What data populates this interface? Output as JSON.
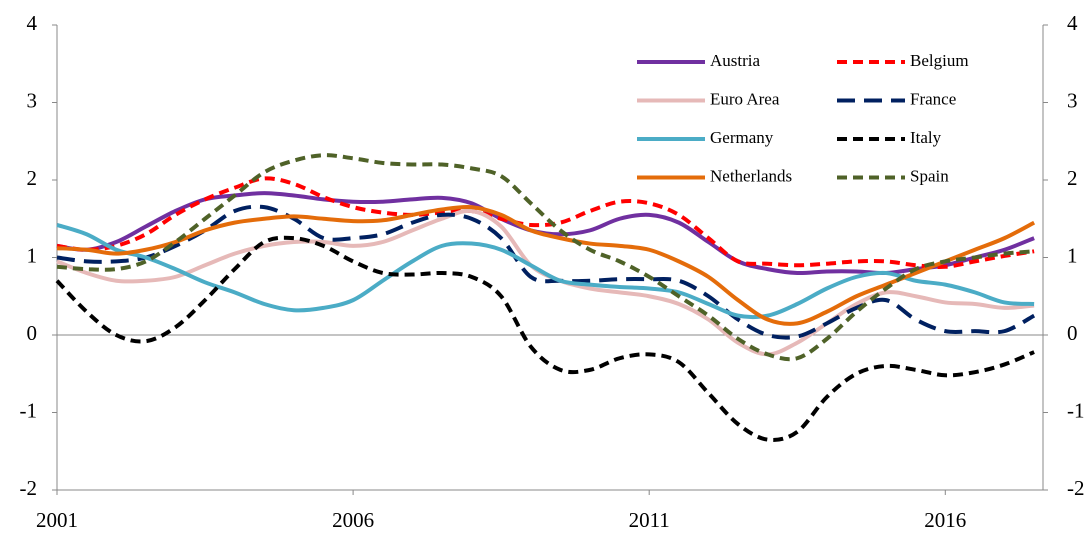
{
  "chart_data": {
    "type": "line",
    "x": [
      2001,
      2001.5,
      2002,
      2002.5,
      2003,
      2003.5,
      2004,
      2004.5,
      2005,
      2005.5,
      2006,
      2006.5,
      2007,
      2007.5,
      2008,
      2008.5,
      2009,
      2009.5,
      2010,
      2010.5,
      2011,
      2011.5,
      2012,
      2012.5,
      2013,
      2013.5,
      2014,
      2014.5,
      2015,
      2015.5,
      2016,
      2016.5,
      2017,
      2017.5
    ],
    "xlim": [
      2001,
      2017.65
    ],
    "xticks": [
      2001,
      2006,
      2011,
      2016
    ],
    "ylim": [
      -2,
      4
    ],
    "yticks": [
      -2,
      -1,
      0,
      1,
      2,
      3,
      4
    ],
    "y2lim": [
      -2,
      4
    ],
    "y2ticks": [
      -2,
      -1,
      0,
      1,
      2,
      3,
      4
    ],
    "series": [
      {
        "name": "Austria",
        "color": "#7030a0",
        "line_style": "solid",
        "values": [
          1.15,
          1.1,
          1.2,
          1.4,
          1.6,
          1.75,
          1.8,
          1.83,
          1.8,
          1.75,
          1.72,
          1.72,
          1.75,
          1.77,
          1.7,
          1.5,
          1.35,
          1.3,
          1.35,
          1.5,
          1.55,
          1.45,
          1.2,
          0.95,
          0.85,
          0.8,
          0.82,
          0.82,
          0.8,
          0.85,
          0.9,
          1.0,
          1.1,
          1.25
        ]
      },
      {
        "name": "Belgium",
        "color": "#ff0000",
        "line_style": "dashed",
        "values": [
          1.15,
          1.1,
          1.15,
          1.3,
          1.55,
          1.75,
          1.9,
          2.02,
          1.95,
          1.78,
          1.65,
          1.58,
          1.55,
          1.58,
          1.6,
          1.5,
          1.42,
          1.45,
          1.6,
          1.72,
          1.7,
          1.55,
          1.25,
          0.95,
          0.92,
          0.9,
          0.92,
          0.95,
          0.95,
          0.9,
          0.88,
          0.95,
          1.02,
          1.08
        ]
      },
      {
        "name": "Euro Area",
        "color": "#e6b9b8",
        "line_style": "solid",
        "values": [
          0.95,
          0.8,
          0.7,
          0.7,
          0.75,
          0.9,
          1.05,
          1.15,
          1.2,
          1.2,
          1.15,
          1.2,
          1.35,
          1.5,
          1.6,
          1.4,
          0.9,
          0.7,
          0.6,
          0.55,
          0.5,
          0.4,
          0.2,
          -0.1,
          -0.25,
          -0.1,
          0.15,
          0.4,
          0.55,
          0.5,
          0.42,
          0.4,
          0.35,
          0.38
        ]
      },
      {
        "name": "France",
        "color": "#002060",
        "line_style": "long-dashed",
        "values": [
          1.0,
          0.95,
          0.95,
          1.0,
          1.15,
          1.35,
          1.6,
          1.65,
          1.5,
          1.25,
          1.25,
          1.3,
          1.45,
          1.55,
          1.5,
          1.25,
          0.75,
          0.7,
          0.7,
          0.72,
          0.72,
          0.7,
          0.5,
          0.2,
          0.0,
          -0.02,
          0.15,
          0.35,
          0.45,
          0.2,
          0.05,
          0.05,
          0.05,
          0.25
        ]
      },
      {
        "name": "Germany",
        "color": "#4bacc6",
        "line_style": "solid",
        "values": [
          1.42,
          1.3,
          1.1,
          1.0,
          0.85,
          0.68,
          0.55,
          0.4,
          0.32,
          0.35,
          0.45,
          0.7,
          0.95,
          1.15,
          1.18,
          1.1,
          0.9,
          0.7,
          0.65,
          0.62,
          0.6,
          0.55,
          0.4,
          0.25,
          0.25,
          0.4,
          0.6,
          0.75,
          0.8,
          0.7,
          0.65,
          0.55,
          0.42,
          0.4
        ]
      },
      {
        "name": "Italy",
        "color": "#000000",
        "line_style": "dashed",
        "values": [
          0.7,
          0.3,
          0.0,
          -0.08,
          0.1,
          0.45,
          0.85,
          1.2,
          1.25,
          1.15,
          0.95,
          0.8,
          0.78,
          0.8,
          0.75,
          0.5,
          -0.15,
          -0.45,
          -0.45,
          -0.3,
          -0.25,
          -0.35,
          -0.75,
          -1.15,
          -1.35,
          -1.25,
          -0.8,
          -0.5,
          -0.4,
          -0.45,
          -0.52,
          -0.48,
          -0.38,
          -0.22
        ]
      },
      {
        "name": "Netherlands",
        "color": "#e46c0a",
        "line_style": "solid",
        "values": [
          1.12,
          1.1,
          1.05,
          1.1,
          1.2,
          1.35,
          1.45,
          1.5,
          1.53,
          1.5,
          1.47,
          1.48,
          1.55,
          1.62,
          1.65,
          1.55,
          1.35,
          1.25,
          1.18,
          1.15,
          1.1,
          0.95,
          0.75,
          0.45,
          0.2,
          0.15,
          0.3,
          0.5,
          0.65,
          0.8,
          0.95,
          1.1,
          1.25,
          1.45
        ]
      },
      {
        "name": "Spain",
        "color": "#4f6228",
        "line_style": "dashed",
        "values": [
          0.88,
          0.85,
          0.85,
          0.95,
          1.2,
          1.5,
          1.8,
          2.1,
          2.25,
          2.32,
          2.28,
          2.22,
          2.2,
          2.2,
          2.15,
          2.05,
          1.7,
          1.35,
          1.1,
          0.95,
          0.75,
          0.5,
          0.25,
          -0.05,
          -0.25,
          -0.3,
          -0.05,
          0.3,
          0.6,
          0.85,
          0.95,
          1.0,
          1.05,
          1.08
        ]
      }
    ]
  }
}
